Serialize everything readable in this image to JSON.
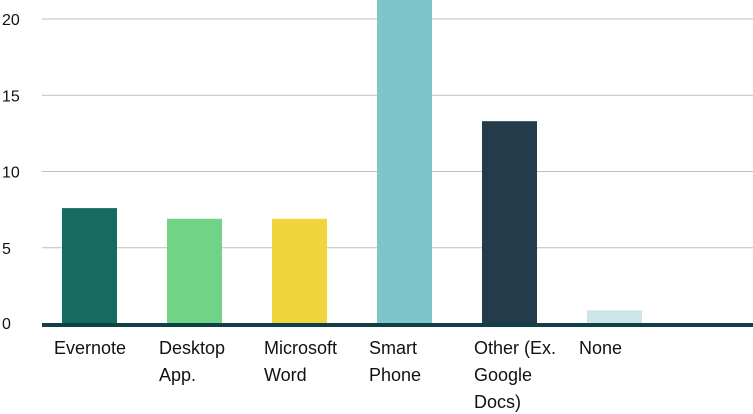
{
  "chart_data": {
    "type": "bar",
    "categories": [
      [
        "Evernote"
      ],
      [
        "Desktop",
        "App."
      ],
      [
        "Microsoft",
        "Word"
      ],
      [
        "Smart",
        "Phone"
      ],
      [
        "Other (Ex.",
        "Google",
        "Docs)"
      ],
      [
        "None"
      ]
    ],
    "values": [
      7.6,
      6.9,
      6.9,
      21.3,
      13.3,
      0.9
    ],
    "colors": [
      "#166b61",
      "#71d386",
      "#f1d53e",
      "#7fc4cb",
      "#243b4c",
      "#cde5e6"
    ],
    "ylim": [
      0,
      20.5
    ],
    "yticks": [
      0,
      5,
      10,
      15,
      20
    ],
    "ytick_labels": [
      "0",
      "5",
      "10",
      "15",
      "20"
    ],
    "grid": true,
    "gridline_color": "#bfbfbf",
    "baseline_color": "#0f4048",
    "title": "",
    "xlabel": "",
    "ylabel": ""
  }
}
